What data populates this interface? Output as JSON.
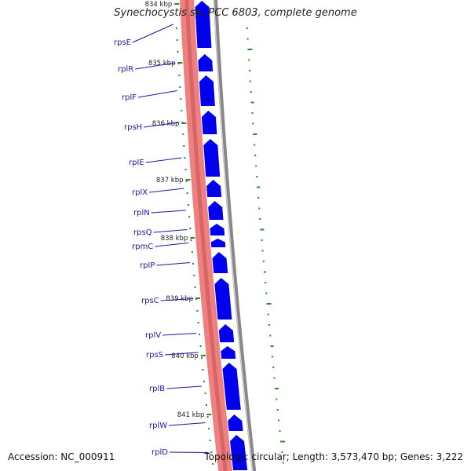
{
  "header": {
    "title": "Synechocystis sp. PCC 6803, complete genome"
  },
  "footer": {
    "accession": "Accession: NC_000911",
    "stats": "Topology: circular; Length: 3,573,470 bp; Genes: 3,222"
  },
  "genes": [
    {
      "name": "rpsE"
    },
    {
      "name": "rplR"
    },
    {
      "name": "rplF"
    },
    {
      "name": "rpsH"
    },
    {
      "name": "rplE"
    },
    {
      "name": "rplX"
    },
    {
      "name": "rplN"
    },
    {
      "name": "rpsQ"
    },
    {
      "name": "rpmC"
    },
    {
      "name": "rplP"
    },
    {
      "name": "rpsC"
    },
    {
      "name": "rplV"
    },
    {
      "name": "rpsS"
    },
    {
      "name": "rplB"
    },
    {
      "name": "rplW"
    },
    {
      "name": "rplD"
    }
  ],
  "ticks": [
    "834 kbp",
    "835 kbp",
    "836 kbp",
    "837 kbp",
    "838 kbp",
    "839 kbp",
    "840 kbp",
    "841 kbp"
  ],
  "colors": {
    "gene_fill": "#0000ee",
    "backbone_red": "#f08080",
    "backbone_edge": "#c05050",
    "outer_ring": "#888888",
    "gc_dots": "#2a8a2a",
    "label_line": "#1a1aa6"
  }
}
